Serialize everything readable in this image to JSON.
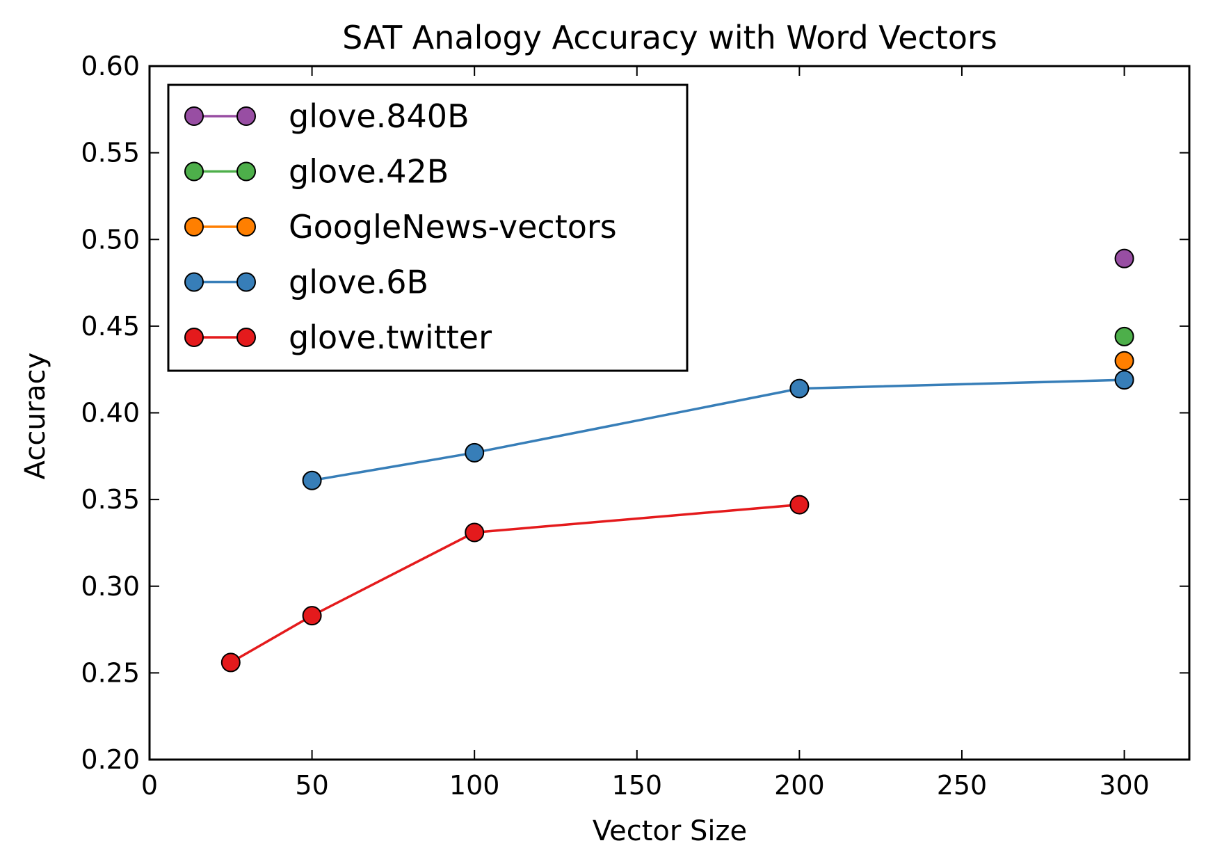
{
  "chart_data": {
    "type": "line",
    "title": "SAT Analogy Accuracy with Word Vectors",
    "xlabel": "Vector Size",
    "ylabel": "Accuracy",
    "xlim": [
      0,
      320
    ],
    "ylim": [
      0.2,
      0.6
    ],
    "x_ticks": [
      0,
      50,
      100,
      150,
      200,
      250,
      300
    ],
    "x_tick_labels": [
      "0",
      "50",
      "100",
      "150",
      "200",
      "250",
      "300"
    ],
    "y_ticks": [
      0.2,
      0.25,
      0.3,
      0.35,
      0.4,
      0.45,
      0.5,
      0.55,
      0.6
    ],
    "y_tick_labels": [
      "0.20",
      "0.25",
      "0.30",
      "0.35",
      "0.40",
      "0.45",
      "0.50",
      "0.55",
      "0.60"
    ],
    "grid": false,
    "legend_position": "top-left",
    "series": [
      {
        "name": "glove.840B",
        "color": "#984ea3",
        "x": [
          300
        ],
        "y": [
          0.489
        ]
      },
      {
        "name": "glove.42B",
        "color": "#4daf4a",
        "x": [
          300
        ],
        "y": [
          0.444
        ]
      },
      {
        "name": "GoogleNews-vectors",
        "color": "#ff7f00",
        "x": [
          300
        ],
        "y": [
          0.43
        ]
      },
      {
        "name": "glove.6B",
        "color": "#377eb8",
        "x": [
          50,
          100,
          200,
          300
        ],
        "y": [
          0.361,
          0.377,
          0.414,
          0.419
        ]
      },
      {
        "name": "glove.twitter",
        "color": "#e41a1c",
        "x": [
          25,
          50,
          100,
          200
        ],
        "y": [
          0.256,
          0.283,
          0.331,
          0.347
        ]
      }
    ]
  }
}
